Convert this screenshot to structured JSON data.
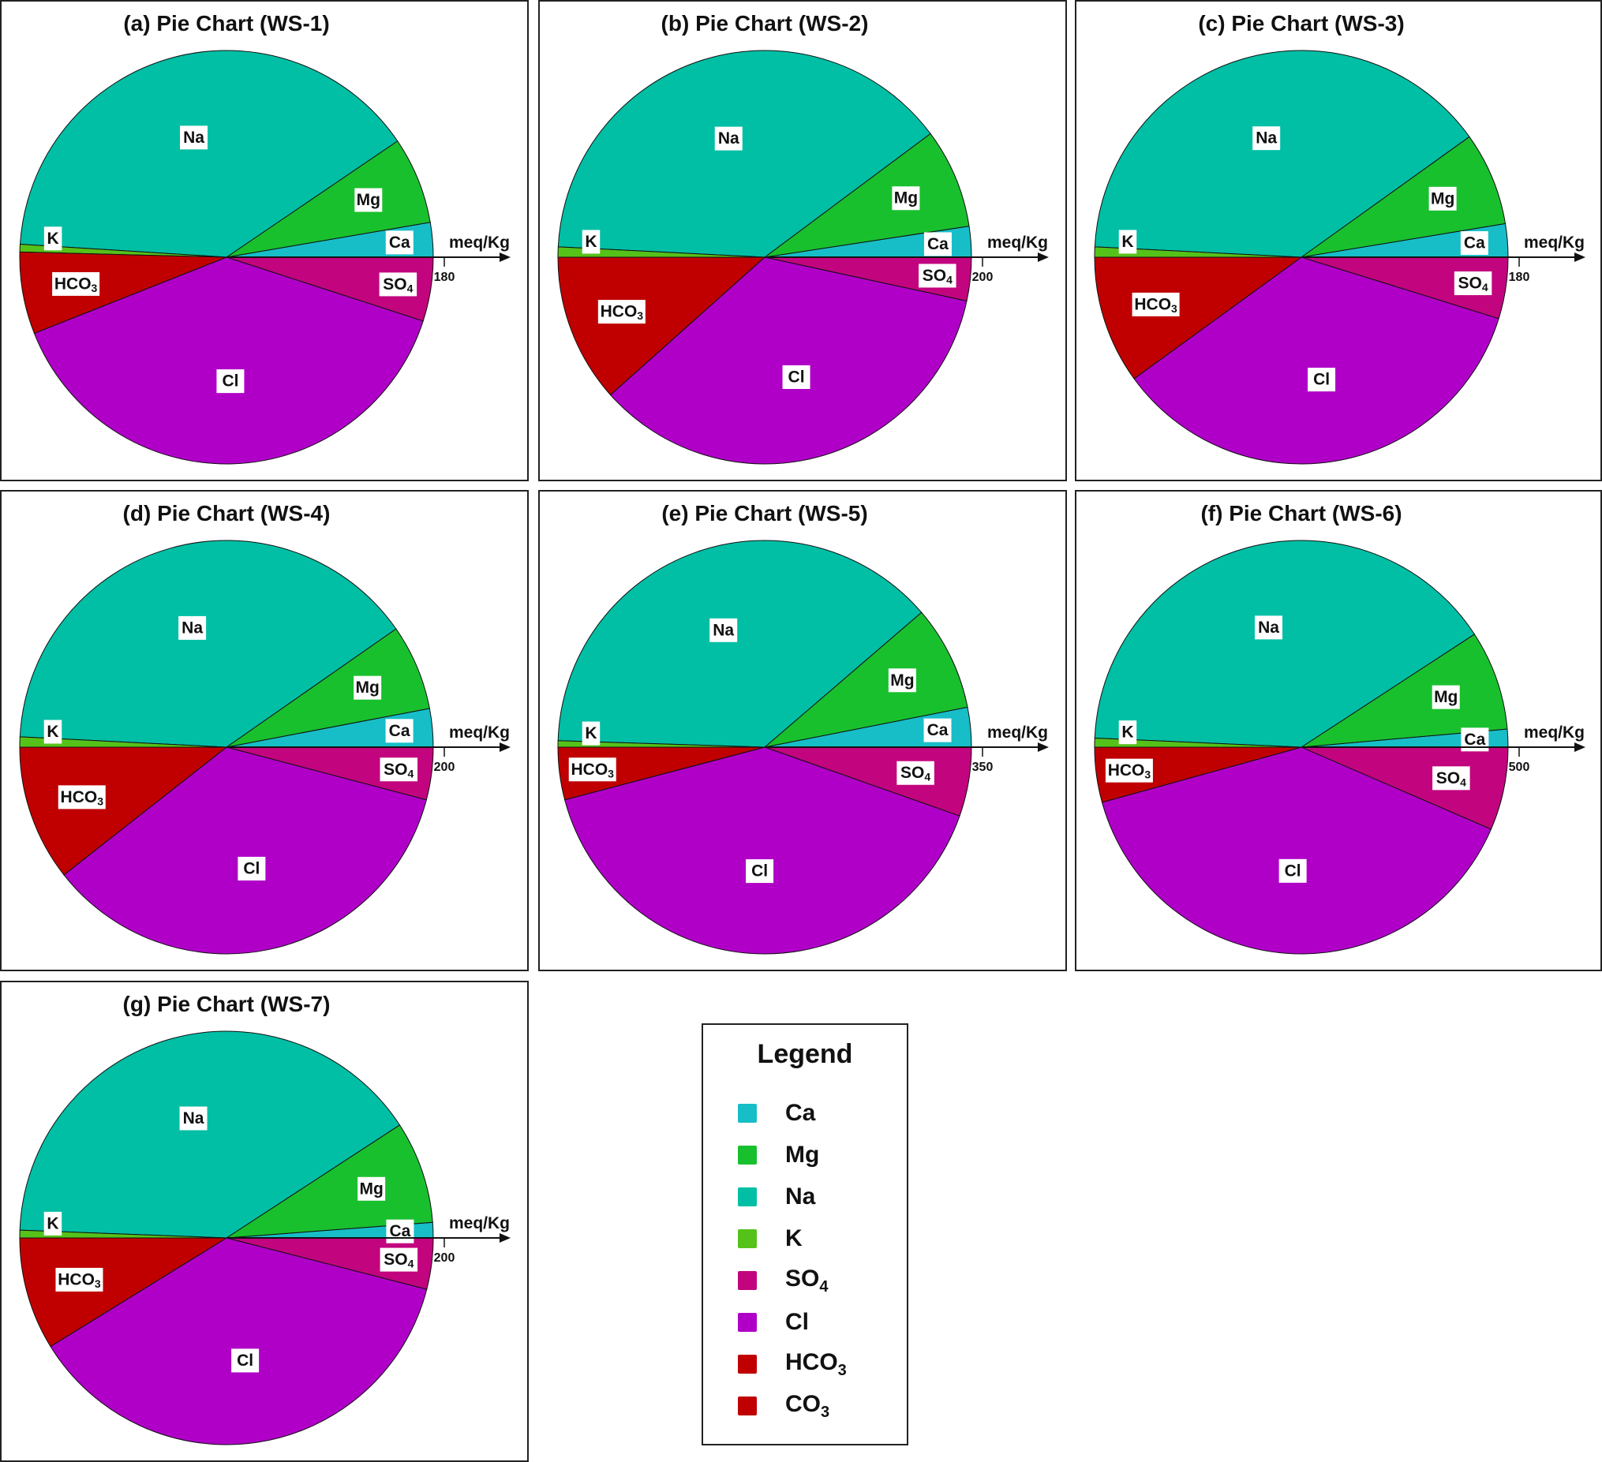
{
  "colors": {
    "Ca": "#17bec7",
    "Mg": "#19c02e",
    "Na": "#00bfa5",
    "K": "#55c21a",
    "SO4": "#c2047f",
    "Cl": "#b000c8",
    "HCO3": "#c00000",
    "CO3": "#c00000"
  },
  "chart_data": [
    {
      "type": "pie",
      "title": "(a) Pie Chart (WS-1)",
      "axis_label": "meq/Kg",
      "scale_tick": "180",
      "cations": [
        {
          "ion": "Ca",
          "label": "Ca",
          "value": 2.7
        },
        {
          "ion": "Mg",
          "label": "Mg",
          "value": 6.8
        },
        {
          "ion": "Na",
          "label": "Na",
          "value": 39.5
        },
        {
          "ion": "K",
          "label": "K",
          "value": 0.6
        }
      ],
      "anions": [
        {
          "ion": "SO4",
          "label": "SO4",
          "value": 5.0
        },
        {
          "ion": "Cl",
          "label": "Cl",
          "value": 39.0
        },
        {
          "ion": "HCO3",
          "label": "HCO3",
          "value": 6.4
        },
        {
          "ion": "CO3",
          "label": "",
          "value": 0
        }
      ]
    },
    {
      "type": "pie",
      "title": "(b) Pie Chart (WS-2)",
      "axis_label": "meq/Kg",
      "scale_tick": "200",
      "cations": [
        {
          "ion": "Ca",
          "label": "Ca",
          "value": 2.4
        },
        {
          "ion": "Mg",
          "label": "Mg",
          "value": 7.8
        },
        {
          "ion": "Na",
          "label": "Na",
          "value": 39.0
        },
        {
          "ion": "K",
          "label": "K",
          "value": 0.8
        }
      ],
      "anions": [
        {
          "ion": "SO4",
          "label": "SO4",
          "value": 3.4
        },
        {
          "ion": "Cl",
          "label": "Cl",
          "value": 35.0
        },
        {
          "ion": "HCO3",
          "label": "HCO3",
          "value": 11.6
        },
        {
          "ion": "CO3",
          "label": "",
          "value": 0
        }
      ]
    },
    {
      "type": "pie",
      "title": "(c) Pie Chart (WS-3)",
      "axis_label": "meq/Kg",
      "scale_tick": "180",
      "cations": [
        {
          "ion": "Ca",
          "label": "Ca",
          "value": 2.6
        },
        {
          "ion": "Mg",
          "label": "Mg",
          "value": 7.3
        },
        {
          "ion": "Na",
          "label": "Na",
          "value": 39.3
        },
        {
          "ion": "K",
          "label": "K",
          "value": 0.8
        }
      ],
      "anions": [
        {
          "ion": "SO4",
          "label": "SO4",
          "value": 4.8
        },
        {
          "ion": "Cl",
          "label": "Cl",
          "value": 35.2
        },
        {
          "ion": "HCO3",
          "label": "HCO3",
          "value": 10.0
        },
        {
          "ion": "CO3",
          "label": "",
          "value": 0
        }
      ]
    },
    {
      "type": "pie",
      "title": "(d) Pie Chart (WS-4)",
      "axis_label": "meq/Kg",
      "scale_tick": "200",
      "cations": [
        {
          "ion": "Ca",
          "label": "Ca",
          "value": 3.0
        },
        {
          "ion": "Mg",
          "label": "Mg",
          "value": 6.7
        },
        {
          "ion": "Na",
          "label": "Na",
          "value": 39.5
        },
        {
          "ion": "K",
          "label": "K",
          "value": 0.8
        }
      ],
      "anions": [
        {
          "ion": "SO4",
          "label": "SO4",
          "value": 4.1
        },
        {
          "ion": "Cl",
          "label": "Cl",
          "value": 35.3
        },
        {
          "ion": "HCO3",
          "label": "HCO3",
          "value": 10.6
        },
        {
          "ion": "CO3",
          "label": "",
          "value": 0
        }
      ]
    },
    {
      "type": "pie",
      "title": "(e) Pie Chart (WS-5)",
      "axis_label": "meq/Kg",
      "scale_tick": "350",
      "cations": [
        {
          "ion": "Ca",
          "label": "Ca",
          "value": 3.1
        },
        {
          "ion": "Mg",
          "label": "Mg",
          "value": 8.2
        },
        {
          "ion": "Na",
          "label": "Na",
          "value": 38.2
        },
        {
          "ion": "K",
          "label": "K",
          "value": 0.5
        }
      ],
      "anions": [
        {
          "ion": "SO4",
          "label": "SO4",
          "value": 5.4
        },
        {
          "ion": "Cl",
          "label": "Cl",
          "value": 40.5
        },
        {
          "ion": "HCO3",
          "label": "HCO3",
          "value": 4.1
        },
        {
          "ion": "CO3",
          "label": "",
          "value": 0
        }
      ]
    },
    {
      "type": "pie",
      "title": "(f) Pie Chart (WS-6)",
      "axis_label": "meq/Kg",
      "scale_tick": "500",
      "cations": [
        {
          "ion": "Ca",
          "label": "Ca",
          "value": 1.4
        },
        {
          "ion": "Mg",
          "label": "Mg",
          "value": 7.8
        },
        {
          "ion": "Na",
          "label": "Na",
          "value": 40.1
        },
        {
          "ion": "K",
          "label": "K",
          "value": 0.7
        }
      ],
      "anions": [
        {
          "ion": "SO4",
          "label": "SO4",
          "value": 6.5
        },
        {
          "ion": "Cl",
          "label": "Cl",
          "value": 39.2
        },
        {
          "ion": "HCO3",
          "label": "HCO3",
          "value": 4.3
        },
        {
          "ion": "CO3",
          "label": "",
          "value": 0
        }
      ]
    },
    {
      "type": "pie",
      "title": "(g) Pie Chart (WS-7)",
      "axis_label": "meq/Kg",
      "scale_tick": "200",
      "cations": [
        {
          "ion": "Ca",
          "label": "Ca",
          "value": 1.2
        },
        {
          "ion": "Mg",
          "label": "Mg",
          "value": 8.0
        },
        {
          "ion": "Na",
          "label": "Na",
          "value": 40.2
        },
        {
          "ion": "K",
          "label": "K",
          "value": 0.6
        }
      ],
      "anions": [
        {
          "ion": "SO4",
          "label": "SO4",
          "value": 4.0
        },
        {
          "ion": "Cl",
          "label": "Cl",
          "value": 37.2
        },
        {
          "ion": "HCO3",
          "label": "HCO3",
          "value": 8.8
        },
        {
          "ion": "CO3",
          "label": "",
          "value": 0
        }
      ]
    }
  ],
  "legend": {
    "title": "Legend",
    "items": [
      {
        "ion": "Ca",
        "base": "Ca",
        "sub": ""
      },
      {
        "ion": "Mg",
        "base": "Mg",
        "sub": ""
      },
      {
        "ion": "Na",
        "base": "Na",
        "sub": ""
      },
      {
        "ion": "K",
        "base": "K",
        "sub": ""
      },
      {
        "ion": "SO4",
        "base": "SO",
        "sub": "4"
      },
      {
        "ion": "Cl",
        "base": "Cl",
        "sub": ""
      },
      {
        "ion": "HCO3",
        "base": "HCO",
        "sub": "3"
      },
      {
        "ion": "CO3",
        "base": "CO",
        "sub": "3"
      }
    ]
  }
}
